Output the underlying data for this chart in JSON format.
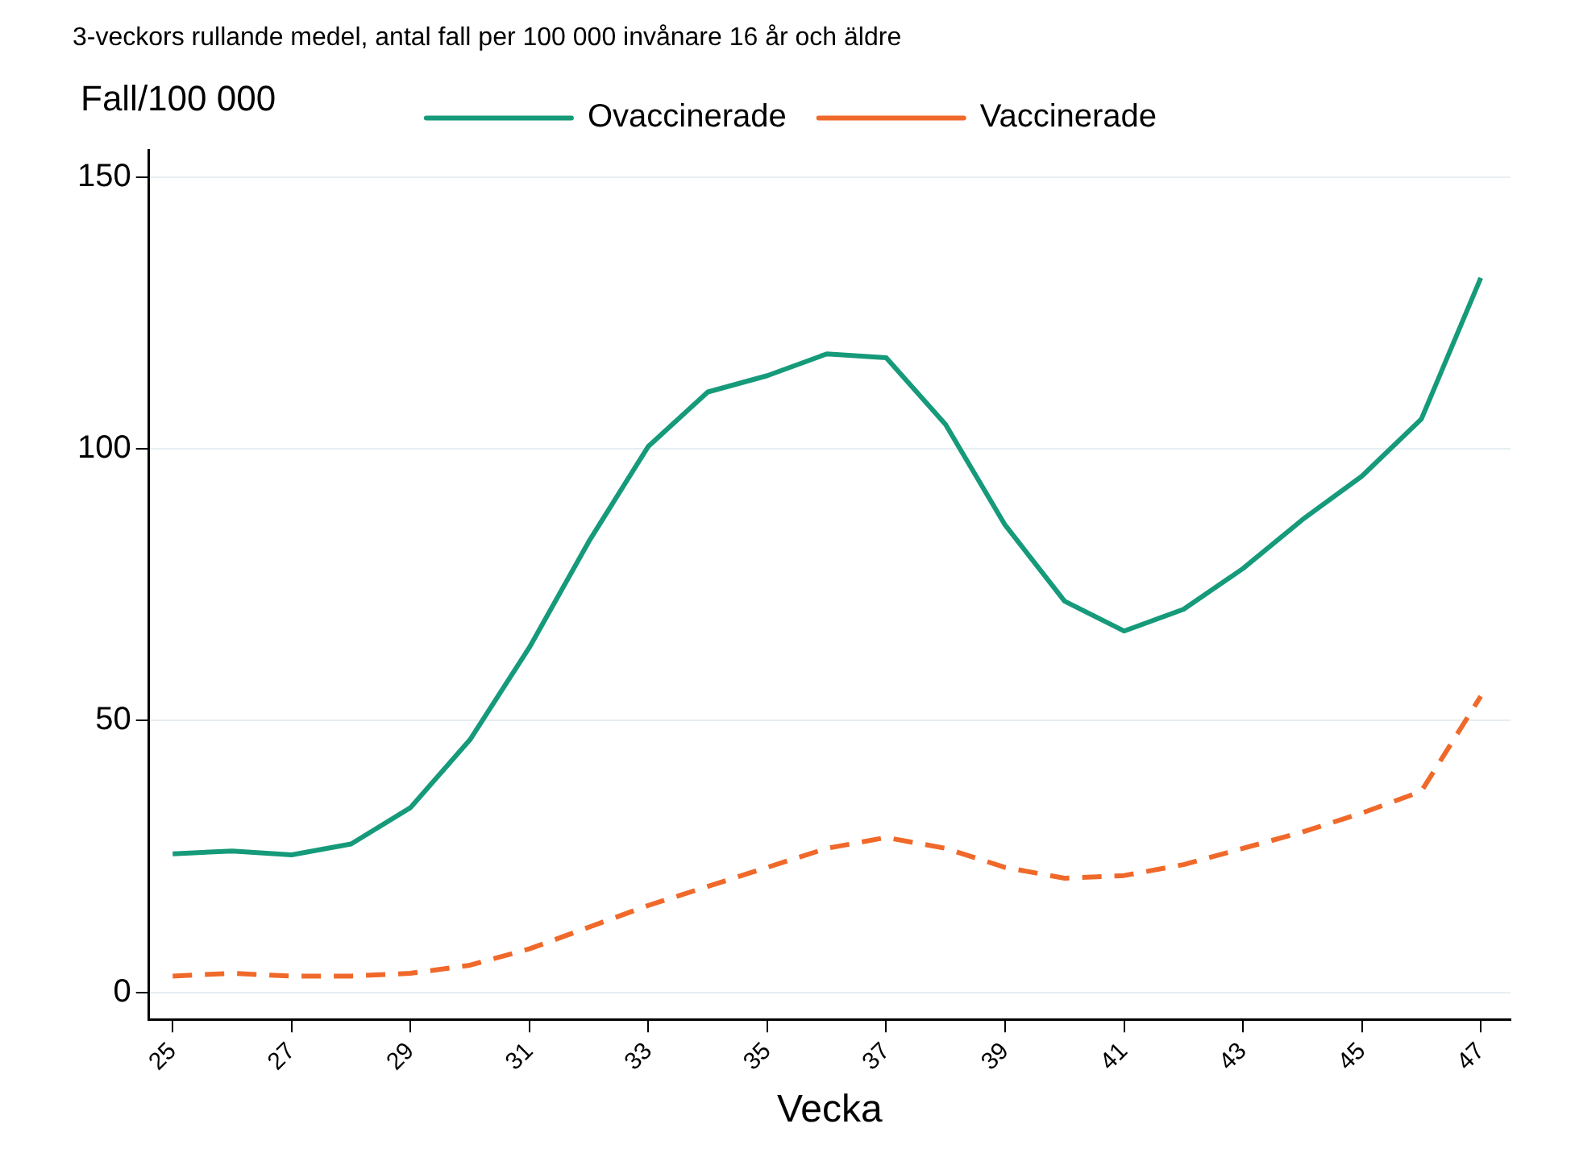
{
  "chart_data": {
    "type": "line",
    "title": "3-veckors rullande medel, antal fall per 100 000 invånare 16 år och äldre",
    "xlabel": "Vecka",
    "ylabel": "Fall/100 000",
    "x": [
      25,
      26,
      27,
      28,
      29,
      30,
      31,
      32,
      33,
      34,
      35,
      36,
      37,
      38,
      39,
      40,
      41,
      42,
      43,
      44,
      45,
      46,
      47
    ],
    "series": [
      {
        "name": "Ovaccinerade",
        "color": "#159a7a",
        "line_style": "solid",
        "values": [
          25.5,
          26,
          25.3,
          27.3,
          34,
          46.5,
          63.5,
          83,
          100.5,
          110.5,
          113.5,
          117.5,
          116.8,
          104.5,
          86,
          72,
          66.5,
          70.5,
          78,
          87,
          95,
          105.5,
          131.5
        ]
      },
      {
        "name": "Vaccinerade",
        "color": "#f0692a",
        "line_style": "dashed",
        "values": [
          3,
          3.5,
          3,
          3,
          3.5,
          5,
          8,
          12,
          16,
          19.5,
          23,
          26.5,
          28.5,
          26.5,
          23,
          21,
          21.5,
          23.5,
          26.5,
          29.5,
          33,
          37,
          54.5
        ]
      }
    ],
    "xlim": [
      24.6,
      47.5
    ],
    "xticks": [
      25,
      27,
      29,
      31,
      33,
      35,
      37,
      39,
      41,
      43,
      45,
      47
    ],
    "ylim": [
      -5,
      155
    ],
    "yticks": [
      0,
      50,
      100,
      150
    ],
    "grid": "y",
    "legend": "top",
    "marker": "none"
  }
}
